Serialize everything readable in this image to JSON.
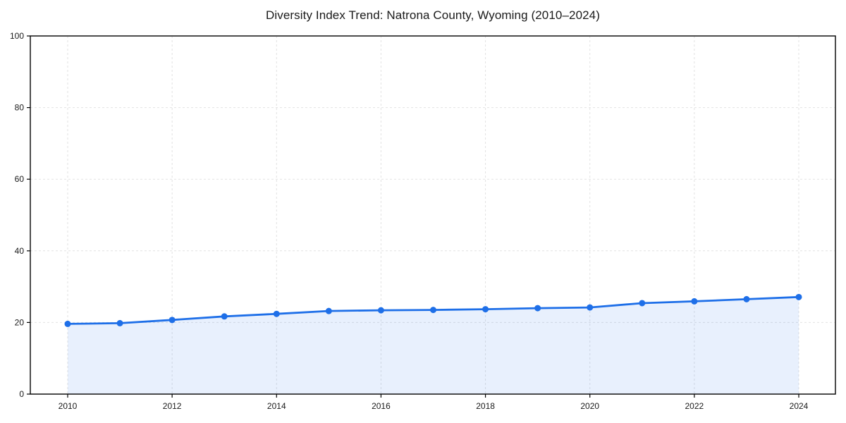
{
  "header": {
    "title": "Diversity Index Trend: Natrona County, Wyoming (2010–2024)"
  },
  "chart_data": {
    "type": "area",
    "title": "Diversity Index Trend: Natrona County, Wyoming (2010–2024)",
    "x": [
      2010,
      2011,
      2012,
      2013,
      2014,
      2015,
      2016,
      2017,
      2018,
      2019,
      2020,
      2021,
      2022,
      2023,
      2024
    ],
    "series": [
      {
        "name": "Diversity Index",
        "values": [
          19.6,
          19.8,
          20.7,
          21.7,
          22.4,
          23.2,
          23.4,
          23.5,
          23.7,
          24.0,
          24.2,
          25.4,
          25.9,
          26.5,
          27.1
        ]
      }
    ],
    "xlabel": "",
    "ylabel": "",
    "xlim": [
      2009.3,
      2024.7
    ],
    "ylim": [
      0,
      100
    ],
    "xticks": [
      2010,
      2012,
      2014,
      2016,
      2018,
      2020,
      2022,
      2024
    ],
    "yticks": [
      0,
      20,
      40,
      60,
      80,
      100
    ],
    "grid": true,
    "grid_style": "dashed",
    "legend": "none",
    "colors": {
      "line": "#1e6fe8",
      "marker": "#1e6fe8",
      "fill": "#1e6fe8",
      "fill_opacity": 0.1,
      "gridline": "#e2e2e2",
      "axis": "#000000",
      "text": "#1a1a1a",
      "background": "#ffffff"
    },
    "marker": "circle",
    "marker_radius": 4.5,
    "line_width": 2.8
  }
}
